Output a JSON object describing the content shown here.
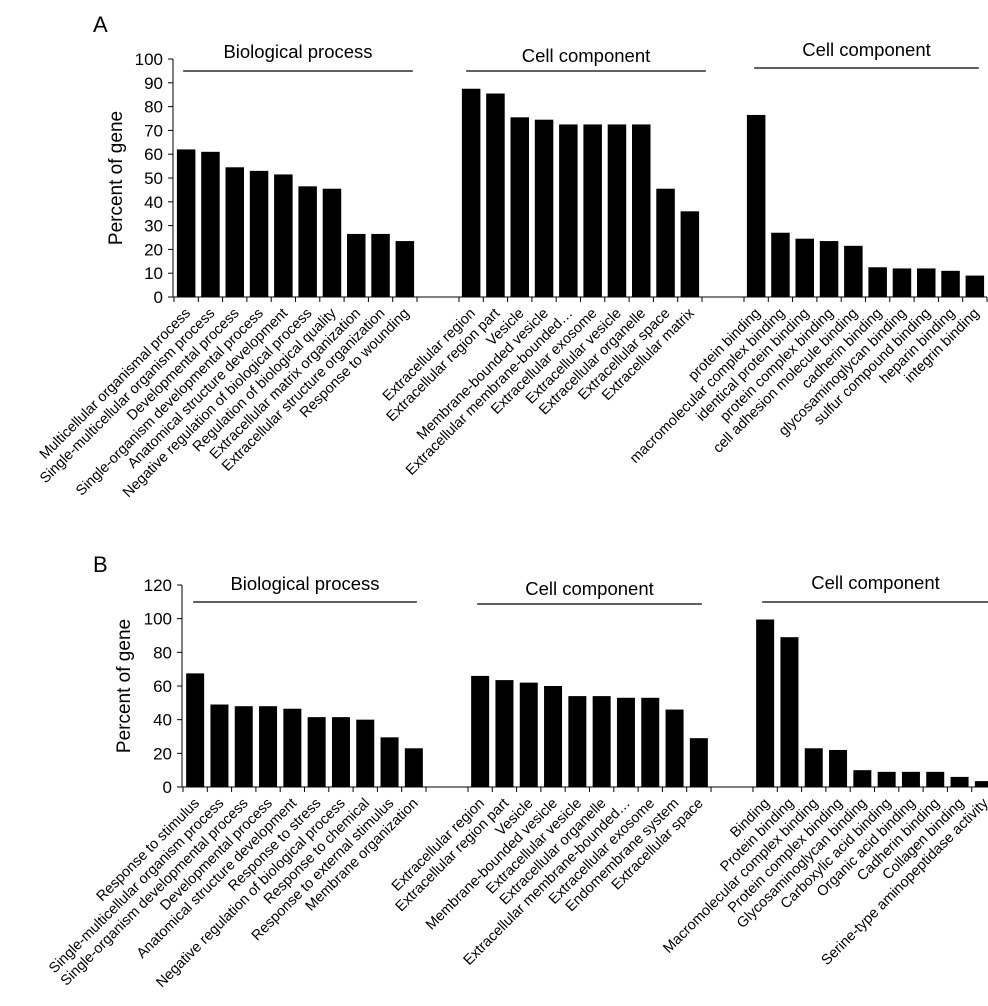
{
  "chart_data": [
    {
      "type": "bar",
      "panel_label": "A",
      "ylabel": "Percent of gene",
      "ylim": [
        0,
        100
      ],
      "yticks": [
        0,
        10,
        20,
        30,
        40,
        50,
        60,
        70,
        80,
        90,
        100
      ],
      "grid": false,
      "groups": [
        {
          "title": "Biological process",
          "categories": [
            "Multicellular organismal process",
            "Single-multicellular organism process",
            "Developmental process",
            "Single-organism developmental process",
            "Anatomical structure development",
            "Negative regulation of biological process",
            "Regulation of biological quality",
            "Extracellular matrix organization",
            "Extracellular structure organization",
            "Response to wounding"
          ],
          "values": [
            62,
            61,
            54.5,
            53,
            51.5,
            46.5,
            45.5,
            26.5,
            26.5,
            23.5
          ]
        },
        {
          "title": "Cell component",
          "categories": [
            "Extracellular region",
            "Extracellular region part",
            "Vesicle",
            "Membrane-bounded vesicle",
            "Extracellular membrane-bounded…",
            "Extracellular exosome",
            "Extracellular vesicle",
            "Extracellular organelle",
            "Extracellular space",
            "Extracellular matrix"
          ],
          "values": [
            87.5,
            85.5,
            75.5,
            74.5,
            72.5,
            72.5,
            72.5,
            72.5,
            45.5,
            36
          ]
        },
        {
          "title": "Cell component",
          "categories": [
            "protein binding",
            "macromolecular complex binding",
            "identical protein binding",
            "protein complex binding",
            "cell adhesion molecule binding",
            "cadherin binding",
            "glycosaminoglycan binding",
            "sulfur compound binding",
            "heparin binding",
            "integrin binding"
          ],
          "values": [
            76.5,
            27,
            24.5,
            23.5,
            21.5,
            12.5,
            12,
            12,
            11,
            9
          ]
        }
      ]
    },
    {
      "type": "bar",
      "panel_label": "B",
      "ylabel": "Percent of gene",
      "ylim": [
        0,
        120
      ],
      "yticks": [
        0,
        20,
        40,
        60,
        80,
        100,
        120
      ],
      "grid": false,
      "groups": [
        {
          "title": "Biological process",
          "categories": [
            "Response to stimulus",
            "Single-multicellular organism process",
            "Single-organism developmental process",
            "Developmental process",
            "Anatomical structure development",
            "Response to stress",
            "Negative regulation of biological process",
            "Response to chemical",
            "Response to external stimulus",
            "Membrane organization"
          ],
          "values": [
            67.5,
            49,
            48,
            48,
            46.5,
            41.5,
            41.5,
            40,
            29.5,
            23
          ]
        },
        {
          "title": "Cell component",
          "categories": [
            "Extracellular region",
            "Extracellular region part",
            "Vesicle",
            "Membrane-bounded vesicle",
            "Extracellular vesicle",
            "Extracellular organelle",
            "Extracellular membrane-bounded…",
            "Extracellular exosome",
            "Endomembrane system",
            "Extracellular space"
          ],
          "values": [
            66,
            63.5,
            62,
            60,
            54,
            54,
            53,
            53,
            46,
            29
          ]
        },
        {
          "title": "Cell component",
          "categories": [
            "Binding",
            "Protein binding",
            "Macromolecular complex binding",
            "Protein complex binding",
            "Glycosaminoglycan binding",
            "Carboxylic acid binding",
            "Organic acid binding",
            "Cadherin binding",
            "Collagen binding",
            "Serine-type aminopeptidase activity"
          ],
          "values": [
            99.5,
            89,
            23,
            22,
            10,
            9,
            9,
            9,
            6,
            3.5
          ]
        }
      ]
    }
  ],
  "colors": {
    "bar": "#000000",
    "axis": "#000000",
    "background": "#ffffff"
  }
}
